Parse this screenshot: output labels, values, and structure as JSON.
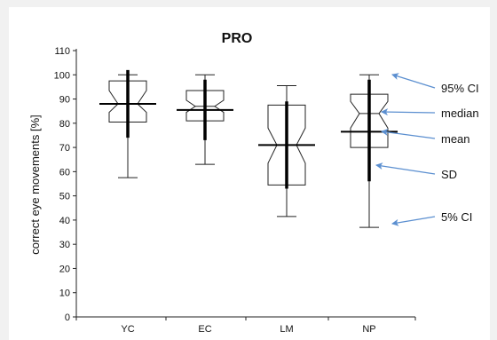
{
  "chart_data": {
    "type": "box",
    "title": "PRO",
    "ylabel": "correct eye movements [%]",
    "xlabel": "",
    "ylim": [
      0,
      110
    ],
    "yticks": [
      "0",
      "10",
      "20",
      "30",
      "40",
      "50",
      "60",
      "70",
      "80",
      "90",
      "100",
      "110"
    ],
    "categories": [
      "YC",
      "EC",
      "LM",
      "NP"
    ],
    "groups": [
      {
        "name": "YC",
        "ci5": 57.5,
        "q1": 80.5,
        "median": 88,
        "notch_low": 84.5,
        "notch_high": 93.5,
        "q3": 97.5,
        "ci95": 100,
        "mean": 88,
        "sd_low": 74,
        "sd_high": 102
      },
      {
        "name": "EC",
        "ci5": 63,
        "q1": 81,
        "median": 87,
        "notch_low": 84.5,
        "notch_high": 89.5,
        "q3": 93.5,
        "ci95": 100,
        "mean": 85.5,
        "sd_low": 73,
        "sd_high": 98
      },
      {
        "name": "LM",
        "ci5": 41.5,
        "q1": 54.5,
        "median": 71,
        "notch_low": 63.5,
        "notch_high": 78,
        "q3": 87.5,
        "ci95": 95.5,
        "mean": 71,
        "sd_low": 53,
        "sd_high": 89
      },
      {
        "name": "NP",
        "ci5": 37,
        "q1": 70,
        "median": 84,
        "notch_low": 78,
        "notch_high": 89,
        "q3": 92,
        "ci95": 100,
        "mean": 76.5,
        "sd_low": 56,
        "sd_high": 98
      }
    ],
    "annotations": [
      {
        "label": "95% CI"
      },
      {
        "label": "median"
      },
      {
        "label": "mean"
      },
      {
        "label": "SD"
      },
      {
        "label": "5% CI"
      }
    ],
    "colors": {
      "box": "#222222",
      "arrow": "#5b8fd0",
      "axis": "#222222"
    }
  }
}
